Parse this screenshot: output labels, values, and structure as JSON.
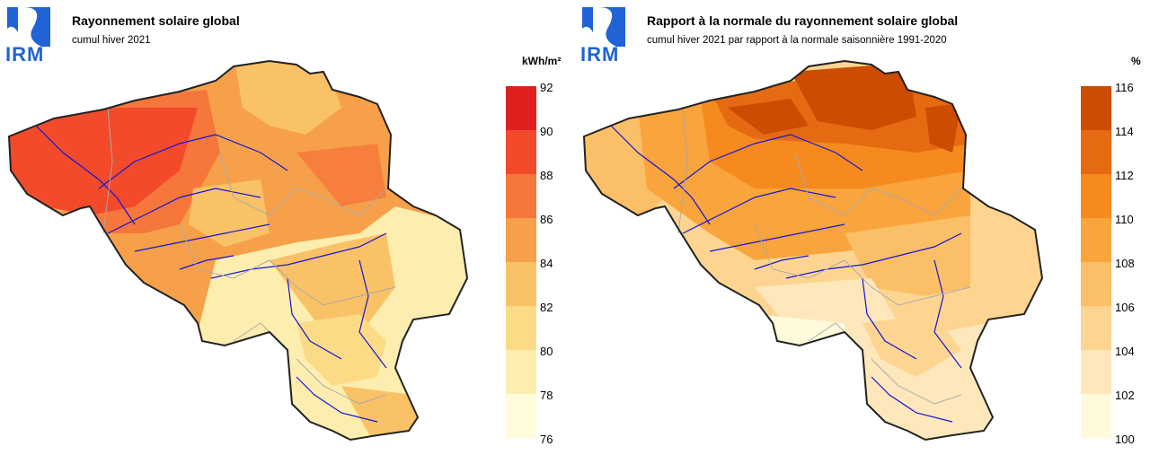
{
  "logo_text": "IRM",
  "maps": [
    {
      "title": "Rayonnement solaire global",
      "subtitle": "cumul hiver 2021",
      "unit": "kWh/m²",
      "legend_labels": [
        "92",
        "90",
        "88",
        "86",
        "84",
        "82",
        "80",
        "78",
        "76"
      ],
      "legend_colors": [
        "#e0201e",
        "#f24a2a",
        "#f5773b",
        "#f7a04a",
        "#fac266",
        "#fcdb86",
        "#fdeeaf",
        "#fffcd9"
      ]
    },
    {
      "title": "Rapport à la normale du rayonnement solaire global",
      "subtitle": "cumul hiver 2021 par rapport à la normale saisonnière 1991-2020",
      "unit": "%",
      "legend_labels": [
        "116",
        "114",
        "112",
        "110",
        "108",
        "106",
        "104",
        "102",
        "100"
      ],
      "legend_colors": [
        "#cc4c02",
        "#e56a12",
        "#f58a1f",
        "#f9a43c",
        "#fbbf67",
        "#fdd591",
        "#fee8bb",
        "#fffadb"
      ]
    }
  ]
}
